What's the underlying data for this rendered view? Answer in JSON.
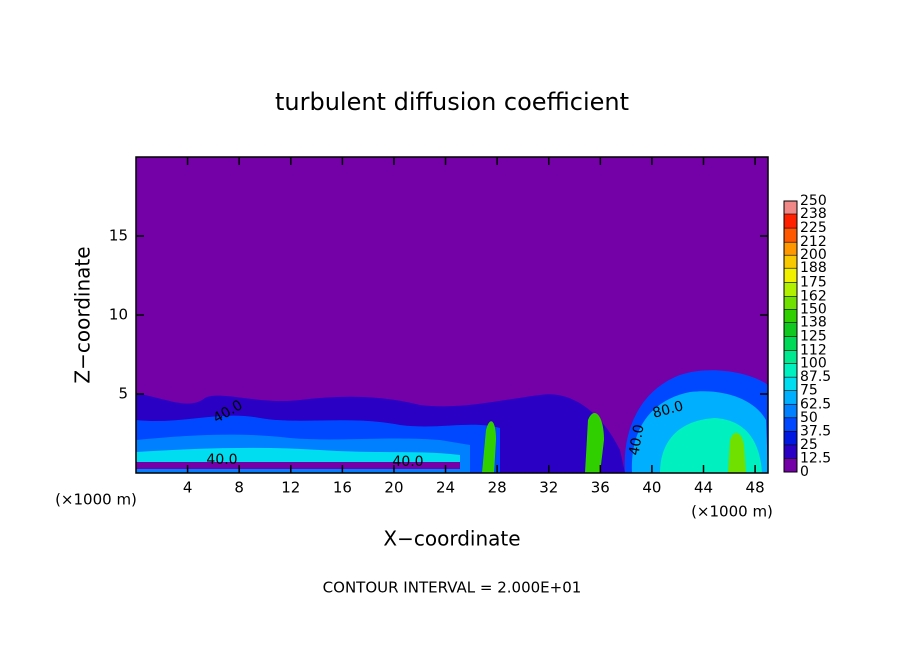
{
  "chart_data": {
    "type": "contour",
    "title": "turbulent diffusion coefficient",
    "x_label": "X−coordinate",
    "y_label": "Z−coordinate",
    "x_unit_left": "(×1000 m)",
    "x_unit_right": "(×1000 m)",
    "footnote": "CONTOUR INTERVAL = 2.000E+01",
    "xlim": [
      0,
      49
    ],
    "ylim": [
      0,
      20
    ],
    "xticks": [
      4,
      8,
      12,
      16,
      20,
      24,
      28,
      32,
      36,
      40,
      44,
      48
    ],
    "yticks": [
      5,
      10,
      15
    ],
    "colorbar_levels": [
      0,
      12.5,
      25,
      37.5,
      50,
      62.5,
      75,
      87.5,
      100,
      112,
      125,
      138,
      150,
      162,
      175,
      188,
      200,
      212,
      225,
      238,
      250
    ],
    "colorbar_colors": [
      "#7400a8",
      "#2a00c4",
      "#0018e0",
      "#0048ff",
      "#0080ff",
      "#00b0ff",
      "#00dcf0",
      "#00f0c0",
      "#00e890",
      "#00d858",
      "#10c820",
      "#30d000",
      "#70e000",
      "#b0f000",
      "#f0f000",
      "#f8c800",
      "#ff9800",
      "#ff5800",
      "#ff2000",
      "#f08888"
    ],
    "contour_labels": [
      "40.0",
      "80.0",
      "40.0",
      "40.0",
      "40.0"
    ]
  }
}
